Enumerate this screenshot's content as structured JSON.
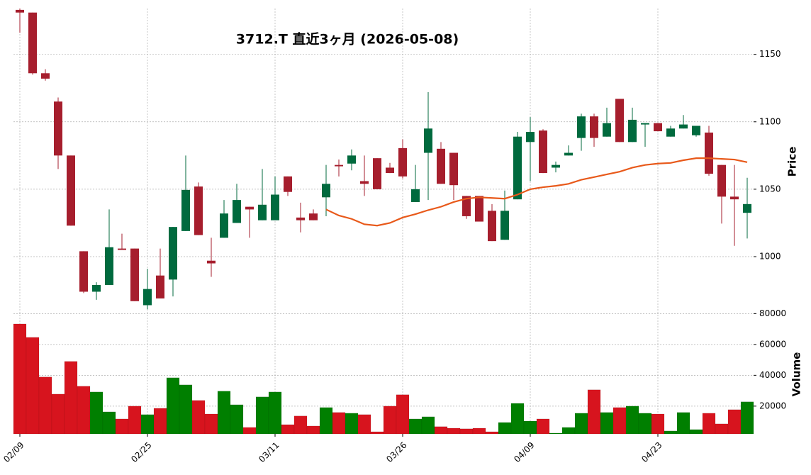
{
  "chart_data": {
    "type": "candlestick",
    "title": "3712.T  直近3ヶ月  (2026-05-08)",
    "categories": [
      "02/09",
      null,
      null,
      null,
      null,
      null,
      null,
      null,
      null,
      null,
      "02/25",
      null,
      null,
      null,
      null,
      null,
      null,
      null,
      null,
      null,
      "03/11",
      null,
      null,
      null,
      null,
      null,
      null,
      null,
      null,
      null,
      "03/26",
      null,
      null,
      null,
      null,
      null,
      null,
      null,
      null,
      null,
      "04/09",
      null,
      null,
      null,
      null,
      null,
      null,
      null,
      null,
      null,
      "04/23",
      null,
      null,
      null,
      null,
      null,
      null,
      null
    ],
    "open": [
      1183,
      1181,
      1136,
      1115,
      1075,
      1004,
      974,
      979,
      1006,
      1006,
      964,
      986,
      983,
      1019,
      1052,
      997,
      1014,
      1025,
      1037,
      1027,
      1027,
      1059.5,
      1029,
      1032,
      1044,
      1068,
      1069,
      1056,
      1073,
      1066,
      1080.5,
      1040.5,
      1077,
      1080,
      1077,
      1045,
      1045,
      1034,
      1012.5,
      1042.5,
      1085,
      1093.5,
      1066,
      1075,
      1088,
      1104,
      1089,
      1117,
      1085,
      1098,
      1099,
      1089,
      1095,
      1090,
      1092,
      1068,
      1044.5,
      1032.5
    ],
    "high": [
      1184,
      1181,
      1139,
      1118,
      1075,
      1004,
      981,
      1035,
      1017,
      1006,
      991,
      1006,
      1022,
      1075,
      1055,
      1014,
      1042,
      1054,
      1037,
      1065,
      1059.5,
      1059.5,
      1040,
      1035,
      1068,
      1072,
      1079.5,
      1075,
      1073,
      1069.5,
      1087,
      1068,
      1122,
      1085,
      1077,
      1045,
      1045,
      1039,
      1049,
      1092.5,
      1103.5,
      1094.5,
      1070.5,
      1082.5,
      1106,
      1106,
      1110.5,
      1117,
      1110.5,
      1099,
      1099,
      1097,
      1105,
      1097,
      1097,
      1068,
      1068,
      1058.5
    ],
    "low": [
      1166,
      1135,
      1130.5,
      1065,
      1023,
      973,
      968,
      979,
      1005,
      967,
      961,
      969,
      970.5,
      1019,
      1016,
      985,
      1014,
      1025,
      1014,
      1027,
      1027,
      1045,
      1018,
      1027,
      1030,
      1059.5,
      1064,
      1045,
      1050,
      1062,
      1058,
      1040.5,
      1042,
      1054,
      1042,
      1028,
      1026,
      1011.5,
      1012.5,
      1042.5,
      1056,
      1062,
      1062.5,
      1075,
      1078.5,
      1081.5,
      1089,
      1085,
      1085,
      1081.5,
      1093,
      1089,
      1095,
      1089,
      1060,
      1024.5,
      1008,
      1013.5
    ],
    "close": [
      1181,
      1136,
      1132,
      1075,
      1023,
      974,
      979,
      1007,
      1005,
      967,
      976,
      969,
      1022,
      1049.5,
      1016,
      995,
      1032,
      1042,
      1035,
      1038.5,
      1046,
      1048,
      1027,
      1027,
      1054,
      1067,
      1075,
      1054,
      1050,
      1062,
      1059.5,
      1050,
      1095,
      1054,
      1053,
      1030,
      1026,
      1011.5,
      1034,
      1089,
      1092.5,
      1062,
      1068,
      1077,
      1104,
      1088,
      1099,
      1085,
      1101.5,
      1099,
      1093,
      1095,
      1098,
      1097,
      1061.5,
      1044.5,
      1042.5,
      1039
    ],
    "up_color": "#006a3e",
    "down_color": "#a61e2d",
    "ylim": [
      959,
      1184
    ],
    "yticks": [
      1000,
      1050,
      1100,
      1150
    ],
    "ylabel": "Price",
    "grid": true,
    "ma": {
      "color": "#e8591a",
      "values": [
        null,
        null,
        null,
        null,
        null,
        null,
        null,
        null,
        null,
        null,
        null,
        null,
        null,
        null,
        null,
        null,
        null,
        null,
        null,
        null,
        null,
        null,
        null,
        null,
        1035,
        1030.5,
        1028,
        1024,
        1023,
        1025,
        1029,
        1031.5,
        1034.5,
        1037,
        1040.5,
        1043,
        1044,
        1043.5,
        1043,
        1046,
        1050,
        1051.5,
        1052.5,
        1054,
        1057,
        1059,
        1061,
        1063,
        1066,
        1068,
        1069,
        1069.5,
        1071.5,
        1073,
        1073,
        1072.5,
        1072,
        1070
      ]
    },
    "volume": {
      "label": "Volume",
      "up_color": "#007f00",
      "down_color": "#d7141e",
      "ylim": [
        2000,
        82000
      ],
      "yticks": [
        20000,
        40000,
        60000,
        80000
      ],
      "values": [
        73300,
        64600,
        38900,
        27800,
        49000,
        32900,
        29200,
        16300,
        11700,
        20000,
        14500,
        18600,
        38400,
        33800,
        23700,
        14900,
        29700,
        20900,
        6200,
        26000,
        29200,
        8000,
        13600,
        7100,
        19100,
        15900,
        15400,
        14500,
        3400,
        20000,
        27400,
        11700,
        13100,
        6700,
        5700,
        5300,
        5700,
        3400,
        9400,
        21800,
        10300,
        11700,
        2500,
        6200,
        15400,
        30600,
        15900,
        19100,
        20000,
        15400,
        14900,
        3900,
        15900,
        4800,
        15400,
        8500,
        17700,
        22800
      ]
    }
  }
}
